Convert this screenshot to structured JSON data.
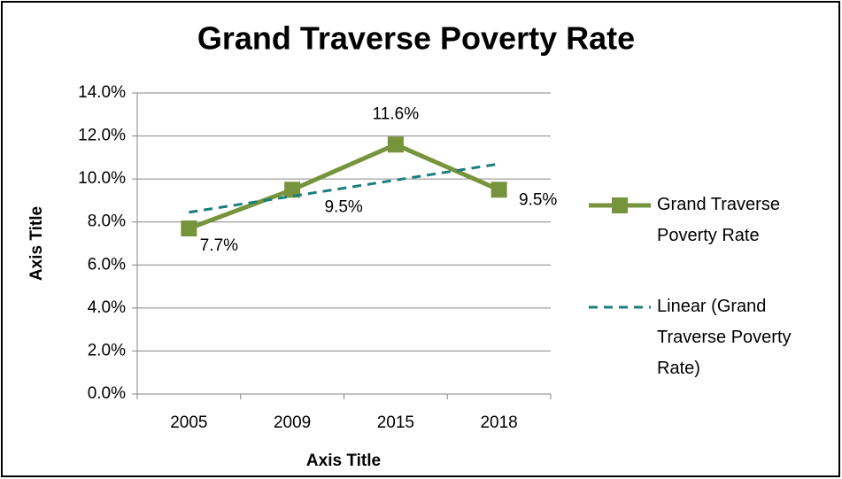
{
  "chart_data": {
    "type": "line",
    "title": "Grand Traverse Poverty Rate",
    "x_label": "Axis Title",
    "y_label": "Axis Title",
    "categories": [
      "2005",
      "2009",
      "2015",
      "2018"
    ],
    "series": [
      {
        "name": "Grand Traverse Poverty Rate",
        "color": "#77933c",
        "values": [
          7.7,
          9.5,
          11.6,
          9.5
        ],
        "value_labels": [
          "7.7%",
          "9.5%",
          "11.6%",
          "9.5%"
        ],
        "marker": "square"
      },
      {
        "name": "Linear (Grand Traverse Poverty Rate)",
        "color": "#1b7f7c",
        "values": [
          8.45,
          9.2,
          9.95,
          10.7
        ],
        "dashed": true
      }
    ],
    "ylim": [
      0,
      14
    ],
    "yticks": [
      {
        "value": 0,
        "label": "0.0%"
      },
      {
        "value": 2,
        "label": "2.0%"
      },
      {
        "value": 4,
        "label": "4.0%"
      },
      {
        "value": 6,
        "label": "6.0%"
      },
      {
        "value": 8,
        "label": "8.0%"
      },
      {
        "value": 10,
        "label": "10.0%"
      },
      {
        "value": 12,
        "label": "12.0%"
      },
      {
        "value": 14,
        "label": "14.0%"
      }
    ],
    "grid": true,
    "legend": "right"
  }
}
